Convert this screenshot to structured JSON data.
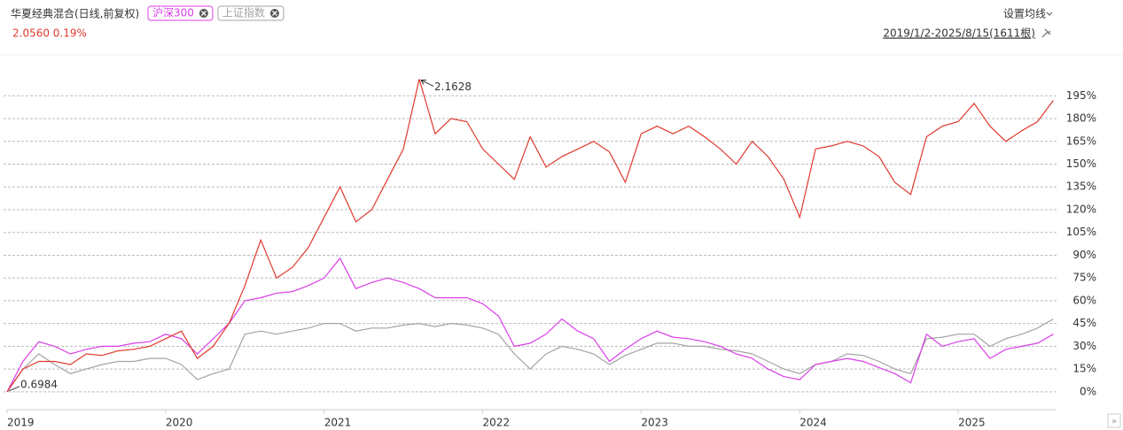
{
  "chart_data": {
    "type": "line",
    "subtitle": "2.0560 0.19%",
    "controls": {
      "ma_button": "设置均线",
      "range": "2019/1/2-2025/8/15(1611根)"
    },
    "x": [
      2019.0,
      2019.1,
      2019.2,
      2019.3,
      2019.4,
      2019.5,
      2019.6,
      2019.7,
      2019.8,
      2019.9,
      2020.0,
      2020.1,
      2020.2,
      2020.3,
      2020.4,
      2020.5,
      2020.6,
      2020.7,
      2020.8,
      2020.9,
      2021.0,
      2021.1,
      2021.2,
      2021.3,
      2021.4,
      2021.5,
      2021.6,
      2021.7,
      2021.8,
      2021.9,
      2022.0,
      2022.1,
      2022.2,
      2022.3,
      2022.4,
      2022.5,
      2022.6,
      2022.7,
      2022.8,
      2022.9,
      2023.0,
      2023.1,
      2023.2,
      2023.3,
      2023.4,
      2023.5,
      2023.6,
      2023.7,
      2023.8,
      2023.9,
      2024.0,
      2024.1,
      2024.2,
      2024.3,
      2024.4,
      2024.5,
      2024.6,
      2024.7,
      2024.8,
      2024.9,
      2025.0,
      2025.1,
      2025.2,
      2025.3,
      2025.4,
      2025.5,
      2025.6
    ],
    "series": [
      {
        "name": "华夏经典混合(日线,前复权)",
        "color": "#e0392e",
        "values": [
          0,
          15,
          20,
          20,
          18,
          25,
          24,
          27,
          28,
          30,
          35,
          40,
          22,
          30,
          45,
          70,
          100,
          75,
          82,
          95,
          115,
          135,
          112,
          120,
          140,
          160,
          206,
          170,
          180,
          178,
          160,
          150,
          140,
          168,
          148,
          155,
          160,
          165,
          158,
          138,
          170,
          175,
          170,
          175,
          168,
          160,
          150,
          165,
          155,
          140,
          115,
          160,
          162,
          165,
          162,
          155,
          138,
          130,
          168,
          175,
          178,
          190,
          175,
          165,
          172,
          178,
          192
        ]
      },
      {
        "name": "沪深300",
        "color": "#d93ee8",
        "values": [
          0,
          20,
          33,
          30,
          25,
          28,
          30,
          30,
          32,
          33,
          38,
          35,
          25,
          35,
          45,
          60,
          62,
          65,
          66,
          70,
          75,
          88,
          68,
          72,
          75,
          72,
          68,
          62,
          62,
          62,
          58,
          50,
          30,
          32,
          38,
          48,
          40,
          35,
          20,
          28,
          35,
          40,
          36,
          35,
          33,
          30,
          25,
          22,
          15,
          10,
          8,
          18,
          20,
          22,
          20,
          16,
          12,
          6,
          38,
          30,
          33,
          35,
          22,
          28,
          30,
          32,
          38
        ]
      },
      {
        "name": "上证指数",
        "color": "#a3a3a3",
        "values": [
          0,
          15,
          25,
          18,
          12,
          15,
          18,
          20,
          20,
          22,
          22,
          18,
          8,
          12,
          15,
          38,
          40,
          38,
          40,
          42,
          45,
          45,
          40,
          42,
          42,
          44,
          45,
          43,
          45,
          44,
          42,
          38,
          25,
          15,
          25,
          30,
          28,
          25,
          18,
          24,
          28,
          32,
          32,
          30,
          30,
          28,
          27,
          25,
          20,
          15,
          12,
          18,
          20,
          25,
          24,
          20,
          15,
          12,
          35,
          36,
          38,
          38,
          30,
          35,
          38,
          42,
          48
        ]
      }
    ],
    "annotations": [
      {
        "text": "2.1628",
        "x": 2021.6,
        "y": 206
      },
      {
        "text": "0.6984",
        "x": 2019.0,
        "y": 0
      }
    ],
    "xlim": [
      2019,
      2025.62
    ],
    "xticks": [
      2019,
      2020,
      2021,
      2022,
      2023,
      2024,
      2025
    ],
    "ylim": [
      -10,
      215
    ],
    "yticks": [
      {
        "value": 0,
        "label": "0%"
      },
      {
        "value": 15,
        "label": "15%"
      },
      {
        "value": 30,
        "label": "30%"
      },
      {
        "value": 45,
        "label": "45%"
      },
      {
        "value": 60,
        "label": "60%"
      },
      {
        "value": 75,
        "label": "75%"
      },
      {
        "value": 90,
        "label": "90%"
      },
      {
        "value": 105,
        "label": "105%"
      },
      {
        "value": 120,
        "label": "120%"
      },
      {
        "value": 135,
        "label": "135%"
      },
      {
        "value": 150,
        "label": "150%"
      },
      {
        "value": 165,
        "label": "165%"
      },
      {
        "value": 180,
        "label": "180%"
      },
      {
        "value": 195,
        "label": "195%"
      }
    ],
    "grid": true
  }
}
